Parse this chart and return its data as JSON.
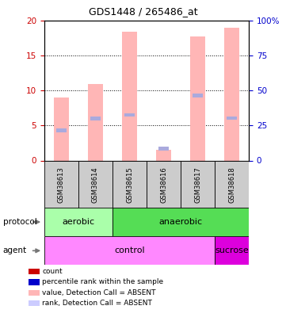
{
  "title": "GDS1448 / 265486_at",
  "samples": [
    "GSM38613",
    "GSM38614",
    "GSM38615",
    "GSM38616",
    "GSM38617",
    "GSM38618"
  ],
  "pink_bar_values": [
    9.0,
    11.0,
    18.5,
    1.5,
    17.8,
    19.0
  ],
  "blue_dot_values": [
    4.3,
    6.0,
    6.5,
    1.7,
    9.3,
    6.1
  ],
  "left_ylim": [
    0,
    20
  ],
  "left_yticks": [
    0,
    5,
    10,
    15,
    20
  ],
  "right_yticklabels": [
    "0",
    "25",
    "50",
    "75",
    "100%"
  ],
  "bar_color": "#ffb6b6",
  "dot_color": "#aaaadd",
  "left_tick_color": "#cc0000",
  "right_tick_color": "#0000cc",
  "proto_data": [
    [
      "aerobic",
      0,
      2,
      "#aaffaa"
    ],
    [
      "anaerobic",
      2,
      6,
      "#55dd55"
    ]
  ],
  "agent_data": [
    [
      "control",
      0,
      5,
      "#ff88ff"
    ],
    [
      "sucrose",
      5,
      6,
      "#dd00dd"
    ]
  ],
  "legend_items": [
    {
      "color": "#cc0000",
      "label": "count"
    },
    {
      "color": "#0000cc",
      "label": "percentile rank within the sample"
    },
    {
      "color": "#ffb6b6",
      "label": "value, Detection Call = ABSENT"
    },
    {
      "color": "#ccccff",
      "label": "rank, Detection Call = ABSENT"
    }
  ]
}
